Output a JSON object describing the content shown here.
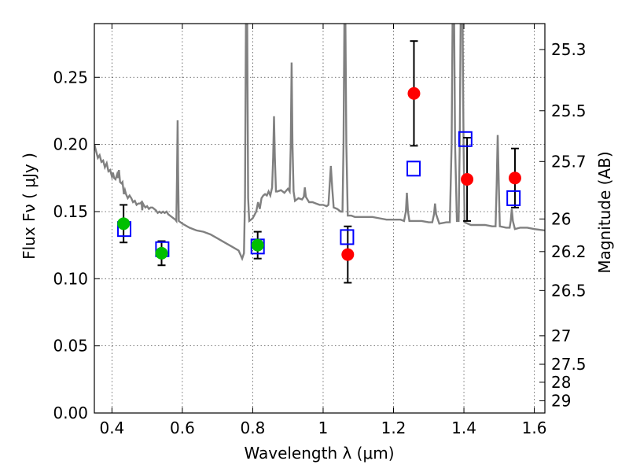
{
  "chart_data": {
    "type": "scatter",
    "title": "",
    "xlabel": "Wavelength  λ (μm)",
    "ylabel": "Flux  Fν  ( μJy )",
    "ylabel_right": "Magnitude (AB)",
    "xlim": [
      0.35,
      1.63
    ],
    "ylim": [
      0.0,
      0.29
    ],
    "x_ticks": [
      0.4,
      0.6,
      0.8,
      1.0,
      1.2,
      1.4,
      1.6
    ],
    "x_tick_labels": [
      "0.4",
      "0.6",
      "0.8",
      "1",
      "1.2",
      "1.4",
      "1.6"
    ],
    "y_ticks": [
      0.0,
      0.05,
      0.1,
      0.15,
      0.2,
      0.25
    ],
    "y_tick_labels": [
      "0.00",
      "0.05",
      "0.10",
      "0.15",
      "0.20",
      "0.25"
    ],
    "right_ticks": [
      {
        "flux": 0.2707,
        "label": "25.3"
      },
      {
        "flux": 0.2251,
        "label": "25.5"
      },
      {
        "flux": 0.1873,
        "label": "25.7"
      },
      {
        "flux": 0.1445,
        "label": "26"
      },
      {
        "flux": 0.1202,
        "label": "26.2"
      },
      {
        "flux": 0.0912,
        "label": "26.5"
      },
      {
        "flux": 0.0575,
        "label": "27"
      },
      {
        "flux": 0.0363,
        "label": "27.5"
      },
      {
        "flux": 0.0229,
        "label": "28"
      },
      {
        "flux": 0.0091,
        "label": "29"
      }
    ],
    "grid": true,
    "series": [
      {
        "name": "model spectrum",
        "kind": "line",
        "color": "#808080",
        "points": [
          [
            0.35,
            0.2
          ],
          [
            0.355,
            0.195
          ],
          [
            0.36,
            0.19
          ],
          [
            0.365,
            0.192
          ],
          [
            0.37,
            0.187
          ],
          [
            0.375,
            0.188
          ],
          [
            0.38,
            0.183
          ],
          [
            0.385,
            0.186
          ],
          [
            0.39,
            0.18
          ],
          [
            0.395,
            0.181
          ],
          [
            0.4,
            0.176
          ],
          [
            0.403,
            0.179
          ],
          [
            0.406,
            0.175
          ],
          [
            0.41,
            0.174
          ],
          [
            0.415,
            0.178
          ],
          [
            0.418,
            0.175
          ],
          [
            0.42,
            0.181
          ],
          [
            0.423,
            0.172
          ],
          [
            0.427,
            0.171
          ],
          [
            0.43,
            0.172
          ],
          [
            0.434,
            0.163
          ],
          [
            0.437,
            0.166
          ],
          [
            0.44,
            0.163
          ],
          [
            0.445,
            0.16
          ],
          [
            0.45,
            0.162
          ],
          [
            0.455,
            0.16
          ],
          [
            0.46,
            0.157
          ],
          [
            0.465,
            0.158
          ],
          [
            0.47,
            0.155
          ],
          [
            0.475,
            0.156
          ],
          [
            0.48,
            0.156
          ],
          [
            0.484,
            0.157
          ],
          [
            0.486,
            0.151
          ],
          [
            0.488,
            0.156
          ],
          [
            0.49,
            0.155
          ],
          [
            0.495,
            0.153
          ],
          [
            0.5,
            0.154
          ],
          [
            0.505,
            0.152
          ],
          [
            0.51,
            0.153
          ],
          [
            0.515,
            0.153
          ],
          [
            0.52,
            0.152
          ],
          [
            0.525,
            0.151
          ],
          [
            0.53,
            0.149
          ],
          [
            0.535,
            0.15
          ],
          [
            0.54,
            0.149
          ],
          [
            0.545,
            0.15
          ],
          [
            0.55,
            0.149
          ],
          [
            0.555,
            0.15
          ],
          [
            0.56,
            0.148
          ],
          [
            0.565,
            0.147
          ],
          [
            0.57,
            0.146
          ],
          [
            0.575,
            0.145
          ],
          [
            0.58,
            0.144
          ],
          [
            0.583,
            0.143
          ],
          [
            0.585,
            0.18
          ],
          [
            0.5865,
            0.218
          ],
          [
            0.588,
            0.18
          ],
          [
            0.59,
            0.143
          ],
          [
            0.6,
            0.141
          ],
          [
            0.62,
            0.138
          ],
          [
            0.64,
            0.136
          ],
          [
            0.66,
            0.135
          ],
          [
            0.68,
            0.133
          ],
          [
            0.7,
            0.13
          ],
          [
            0.72,
            0.127
          ],
          [
            0.74,
            0.124
          ],
          [
            0.76,
            0.121
          ],
          [
            0.765,
            0.118
          ],
          [
            0.77,
            0.115
          ],
          [
            0.775,
            0.119
          ],
          [
            0.778,
            0.16
          ],
          [
            0.781,
            0.3
          ],
          [
            0.784,
            0.3
          ],
          [
            0.787,
            0.16
          ],
          [
            0.79,
            0.143
          ],
          [
            0.8,
            0.145
          ],
          [
            0.81,
            0.15
          ],
          [
            0.815,
            0.157
          ],
          [
            0.82,
            0.152
          ],
          [
            0.825,
            0.16
          ],
          [
            0.83,
            0.162
          ],
          [
            0.835,
            0.163
          ],
          [
            0.84,
            0.162
          ],
          [
            0.845,
            0.165
          ],
          [
            0.85,
            0.162
          ],
          [
            0.855,
            0.168
          ],
          [
            0.858,
            0.19
          ],
          [
            0.8605,
            0.221
          ],
          [
            0.863,
            0.19
          ],
          [
            0.866,
            0.165
          ],
          [
            0.87,
            0.165
          ],
          [
            0.88,
            0.166
          ],
          [
            0.89,
            0.164
          ],
          [
            0.9,
            0.167
          ],
          [
            0.905,
            0.165
          ],
          [
            0.908,
            0.2
          ],
          [
            0.9105,
            0.261
          ],
          [
            0.913,
            0.2
          ],
          [
            0.916,
            0.165
          ],
          [
            0.92,
            0.158
          ],
          [
            0.93,
            0.16
          ],
          [
            0.94,
            0.159
          ],
          [
            0.945,
            0.161
          ],
          [
            0.948,
            0.168
          ],
          [
            0.951,
            0.161
          ],
          [
            0.96,
            0.157
          ],
          [
            0.97,
            0.157
          ],
          [
            0.98,
            0.156
          ],
          [
            0.99,
            0.155
          ],
          [
            1.0,
            0.155
          ],
          [
            1.01,
            0.154
          ],
          [
            1.015,
            0.155
          ],
          [
            1.018,
            0.167
          ],
          [
            1.022,
            0.184
          ],
          [
            1.026,
            0.167
          ],
          [
            1.03,
            0.153
          ],
          [
            1.04,
            0.152
          ],
          [
            1.05,
            0.15
          ],
          [
            1.055,
            0.15
          ],
          [
            1.058,
            0.2
          ],
          [
            1.0605,
            0.3
          ],
          [
            1.063,
            0.3
          ],
          [
            1.066,
            0.2
          ],
          [
            1.07,
            0.147
          ],
          [
            1.08,
            0.147
          ],
          [
            1.09,
            0.146
          ],
          [
            1.1,
            0.146
          ],
          [
            1.12,
            0.146
          ],
          [
            1.14,
            0.146
          ],
          [
            1.16,
            0.145
          ],
          [
            1.18,
            0.144
          ],
          [
            1.2,
            0.144
          ],
          [
            1.22,
            0.144
          ],
          [
            1.23,
            0.143
          ],
          [
            1.235,
            0.15
          ],
          [
            1.238,
            0.164
          ],
          [
            1.241,
            0.15
          ],
          [
            1.245,
            0.143
          ],
          [
            1.26,
            0.143
          ],
          [
            1.28,
            0.143
          ],
          [
            1.3,
            0.142
          ],
          [
            1.31,
            0.142
          ],
          [
            1.315,
            0.148
          ],
          [
            1.318,
            0.156
          ],
          [
            1.321,
            0.148
          ],
          [
            1.33,
            0.141
          ],
          [
            1.35,
            0.142
          ],
          [
            1.36,
            0.142
          ],
          [
            1.365,
            0.2
          ],
          [
            1.368,
            0.3
          ],
          [
            1.372,
            0.3
          ],
          [
            1.375,
            0.2
          ],
          [
            1.38,
            0.143
          ],
          [
            1.385,
            0.143
          ],
          [
            1.388,
            0.2
          ],
          [
            1.391,
            0.3
          ],
          [
            1.396,
            0.3
          ],
          [
            1.399,
            0.2
          ],
          [
            1.402,
            0.142
          ],
          [
            1.42,
            0.14
          ],
          [
            1.44,
            0.14
          ],
          [
            1.46,
            0.14
          ],
          [
            1.48,
            0.139
          ],
          [
            1.49,
            0.139
          ],
          [
            1.493,
            0.17
          ],
          [
            1.496,
            0.207
          ],
          [
            1.499,
            0.17
          ],
          [
            1.502,
            0.139
          ],
          [
            1.52,
            0.138
          ],
          [
            1.53,
            0.138
          ],
          [
            1.533,
            0.143
          ],
          [
            1.536,
            0.152
          ],
          [
            1.539,
            0.143
          ],
          [
            1.545,
            0.137
          ],
          [
            1.56,
            0.138
          ],
          [
            1.58,
            0.138
          ],
          [
            1.6,
            0.137
          ],
          [
            1.63,
            0.136
          ]
        ]
      },
      {
        "name": "green photometry",
        "kind": "points",
        "color": "#00bf00",
        "points": [
          {
            "x": 0.433,
            "y": 0.141,
            "yerr": 0.014
          },
          {
            "x": 0.541,
            "y": 0.119,
            "yerr": 0.009
          },
          {
            "x": 0.814,
            "y": 0.125,
            "yerr": 0.01
          }
        ]
      },
      {
        "name": "red photometry",
        "kind": "points",
        "color": "#ff0000",
        "points": [
          {
            "x": 1.07,
            "y": 0.118,
            "yerr": 0.021
          },
          {
            "x": 1.258,
            "y": 0.238,
            "yerr": 0.039
          },
          {
            "x": 1.409,
            "y": 0.174,
            "yerr": 0.031
          },
          {
            "x": 1.545,
            "y": 0.175,
            "yerr": 0.022
          }
        ]
      },
      {
        "name": "model band fluxes",
        "kind": "open-squares",
        "color": "#0000ff",
        "points": [
          {
            "x": 0.435,
            "y": 0.137
          },
          {
            "x": 0.543,
            "y": 0.122
          },
          {
            "x": 0.814,
            "y": 0.124
          },
          {
            "x": 1.068,
            "y": 0.131
          },
          {
            "x": 1.257,
            "y": 0.182
          },
          {
            "x": 1.404,
            "y": 0.204
          },
          {
            "x": 1.541,
            "y": 0.16
          }
        ]
      }
    ]
  }
}
